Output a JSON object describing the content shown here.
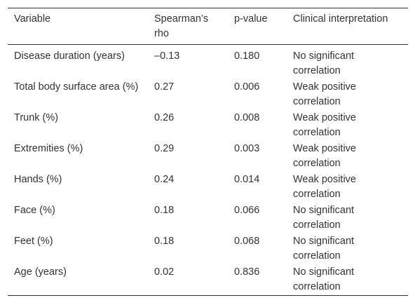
{
  "table": {
    "header": [
      "Variable",
      "Spearman’s rho",
      "p-value",
      "Clinical interpretation"
    ],
    "rows": [
      [
        "Disease duration (years)",
        "–0.13",
        "0.180",
        "No significant correlation"
      ],
      [
        "Total body surface area (%)",
        "0.27",
        "0.006",
        "Weak positive correlation"
      ],
      [
        "Trunk (%)",
        "0.26",
        "0.008",
        "Weak positive correlation"
      ],
      [
        "Extremities (%)",
        "0.29",
        "0.003",
        "Weak positive correlation"
      ],
      [
        "Hands (%)",
        "0.24",
        "0.014",
        "Weak positive correlation"
      ],
      [
        "Face (%)",
        "0.18",
        "0.066",
        "No significant correlation"
      ],
      [
        "Feet (%)",
        "0.18",
        "0.068",
        "No significant correlation"
      ],
      [
        "Age (years)",
        "0.02",
        "0.836",
        "No significant correlation"
      ]
    ]
  }
}
